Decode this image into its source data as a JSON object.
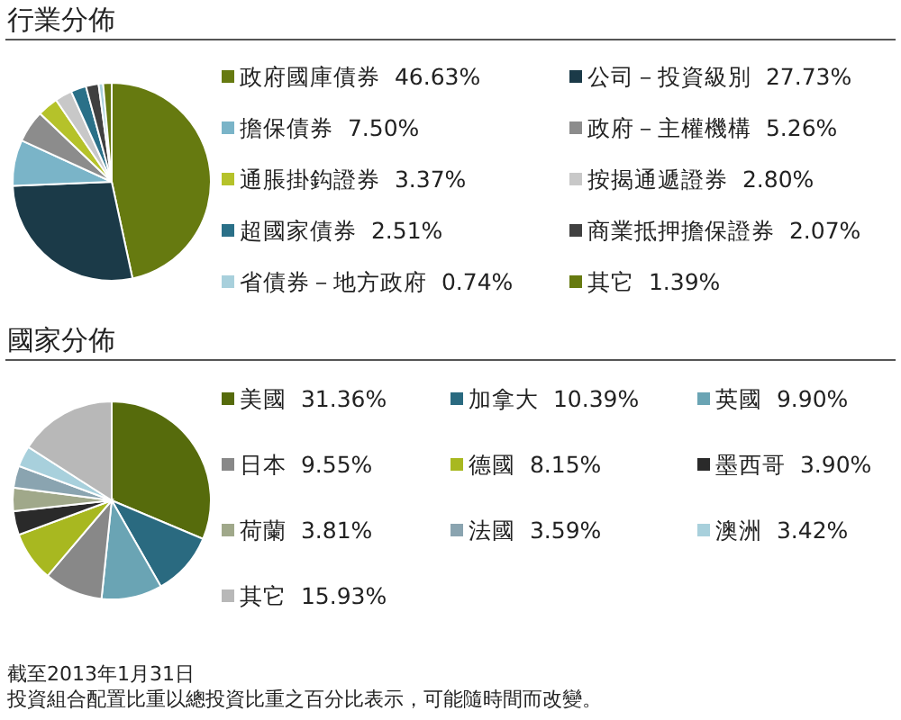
{
  "chart_data": [
    {
      "type": "pie",
      "title": "行業分佈",
      "categories": [
        "政府國庫債券",
        "公司－投資級別",
        "擔保債券",
        "政府－主權機構",
        "通脹掛鈎證券",
        "按揭通遞證券",
        "超國家債券",
        "商業抵押擔保證券",
        "省債券－地方政府",
        "其它"
      ],
      "values": [
        46.63,
        27.73,
        7.5,
        5.26,
        3.37,
        2.8,
        2.51,
        2.07,
        0.74,
        1.39
      ],
      "value_labels": [
        "46.63%",
        "27.73%",
        "7.50%",
        "5.26%",
        "3.37%",
        "2.80%",
        "2.51%",
        "2.07%",
        "0.74%",
        "1.39%"
      ],
      "colors": [
        "#667a10",
        "#1b3a48",
        "#7ab4c8",
        "#8c8c8c",
        "#b5c22a",
        "#c8c8c8",
        "#2a7088",
        "#404040",
        "#a8d0dc",
        "#667a10"
      ],
      "legend": "right"
    },
    {
      "type": "pie",
      "title": "國家分佈",
      "categories": [
        "美國",
        "加拿大",
        "英國",
        "日本",
        "德國",
        "墨西哥",
        "荷蘭",
        "法國",
        "澳洲",
        "其它"
      ],
      "values": [
        31.36,
        10.39,
        9.9,
        9.55,
        8.15,
        3.9,
        3.81,
        3.59,
        3.42,
        15.93
      ],
      "value_labels": [
        "31.36%",
        "10.39%",
        "9.90%",
        "9.55%",
        "8.15%",
        "3.90%",
        "3.81%",
        "3.59%",
        "3.42%",
        "15.93%"
      ],
      "colors": [
        "#566b0c",
        "#2a6a80",
        "#6aa4b4",
        "#888888",
        "#a8b820",
        "#2a2a2a",
        "#a0a88a",
        "#8aa4b0",
        "#a8d0dc",
        "#b8b8b8"
      ],
      "legend": "right",
      "annotations": [
        "截至2013年1月31日",
        "投資組合配置比重以總投資比重之百分比表示，可能隨時間而改變。"
      ]
    }
  ]
}
